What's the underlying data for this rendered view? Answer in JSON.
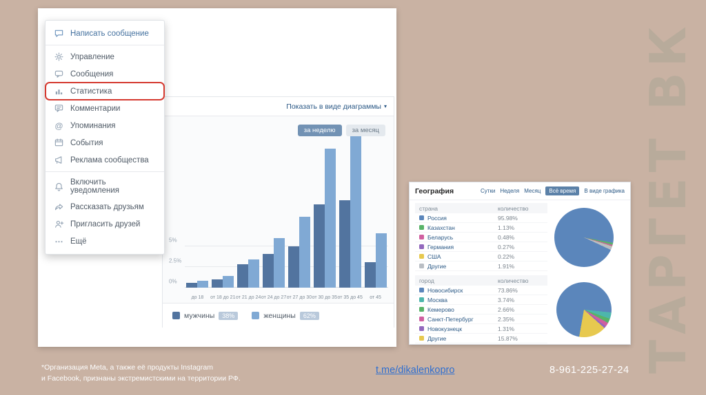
{
  "slide": {
    "vertical_title": "ТАРГЕТ ВК",
    "footnote_line1": "*Организация Meta, а также её продукты Instagram",
    "footnote_line2": "и Facebook, признаны экстремистскими на территории РФ.",
    "telegram_link": "t.me/dikalenkopro",
    "phone": "8-961-225-27-24"
  },
  "menu": {
    "dividers_after": [
      0,
      7
    ],
    "items": [
      {
        "id": "write-message",
        "label": "Написать сообщение",
        "icon": "message-icon",
        "primary": true
      },
      {
        "id": "manage",
        "label": "Управление",
        "icon": "gear-icon"
      },
      {
        "id": "messages",
        "label": "Сообщения",
        "icon": "chat-icon"
      },
      {
        "id": "statistics",
        "label": "Статистика",
        "icon": "stats-icon",
        "highlighted": true
      },
      {
        "id": "comments",
        "label": "Комментарии",
        "icon": "comment-icon"
      },
      {
        "id": "mentions",
        "label": "Упоминания",
        "icon": "at-icon"
      },
      {
        "id": "events",
        "label": "События",
        "icon": "calendar-icon"
      },
      {
        "id": "community-ads",
        "label": "Реклама сообщества",
        "icon": "megaphone-icon"
      },
      {
        "id": "enable-notifications",
        "label": "Включить уведомления",
        "icon": "bell-icon"
      },
      {
        "id": "tell-friends",
        "label": "Рассказать друзьям",
        "icon": "share-icon"
      },
      {
        "id": "invite-friends",
        "label": "Пригласить друзей",
        "icon": "user-plus-icon"
      },
      {
        "id": "more",
        "label": "Ещё",
        "icon": "dots-icon"
      }
    ]
  },
  "age_chart": {
    "show_as_diagram": "Показать в виде диаграммы",
    "caret": "▾",
    "period_week": "за неделю",
    "period_month": "за месяц"
  },
  "geo": {
    "title": "География",
    "tabs": [
      {
        "label": "Сутки"
      },
      {
        "label": "Неделя"
      },
      {
        "label": "Месяц"
      },
      {
        "label": "Всё время",
        "active": true
      },
      {
        "label": "В виде графика"
      }
    ],
    "countries_columns": [
      "страна",
      "количество"
    ],
    "cities_columns": [
      "город",
      "количество"
    ]
  },
  "chart_data": [
    {
      "id": "age-distribution",
      "type": "bar",
      "categories": [
        "до 18",
        "от 18 до 21",
        "от 21 до 24",
        "от 24 до 27",
        "от 27 до 30",
        "от 30 до 35",
        "от 35 до 45",
        "от 45"
      ],
      "series": [
        {
          "name": "мужчины",
          "share": "38%",
          "color": "#52749f",
          "values": [
            0.6,
            1.0,
            2.8,
            4.1,
            5.0,
            10.1,
            10.6,
            3.1
          ]
        },
        {
          "name": "женщины",
          "share": "62%",
          "color": "#80a9d4",
          "values": [
            0.8,
            1.4,
            3.4,
            6.0,
            8.6,
            16.8,
            18.7,
            6.6
          ]
        }
      ],
      "unit": "%",
      "y_ticks": [
        {
          "value": 0,
          "label": "0%"
        },
        {
          "value": 2.5,
          "label": "2.5%"
        },
        {
          "value": 5,
          "label": "5%"
        }
      ],
      "legend_position": "bottom",
      "grid": true
    },
    {
      "id": "geo-countries",
      "type": "pie",
      "start_angle_deg": 115,
      "labels": [
        "Россия",
        "Казахстан",
        "Беларусь",
        "Германия",
        "США",
        "Другие"
      ],
      "values": [
        95.98,
        1.13,
        0.48,
        0.27,
        0.22,
        1.91
      ],
      "colors": [
        "#5b86bb",
        "#58b368",
        "#d05fa0",
        "#9268bd",
        "#e7c94f",
        "#b9bec4"
      ]
    },
    {
      "id": "geo-cities",
      "type": "pie",
      "start_angle_deg": 190,
      "labels": [
        "Новосибирск",
        "Москва",
        "Кемерово",
        "Санкт-Петербург",
        "Новокузнецк",
        "Другие"
      ],
      "values": [
        73.86,
        3.74,
        2.66,
        2.35,
        1.31,
        15.87
      ],
      "colors": [
        "#5b86bb",
        "#4db6ac",
        "#58b368",
        "#d05fa0",
        "#9268bd",
        "#e7c94f"
      ]
    }
  ]
}
